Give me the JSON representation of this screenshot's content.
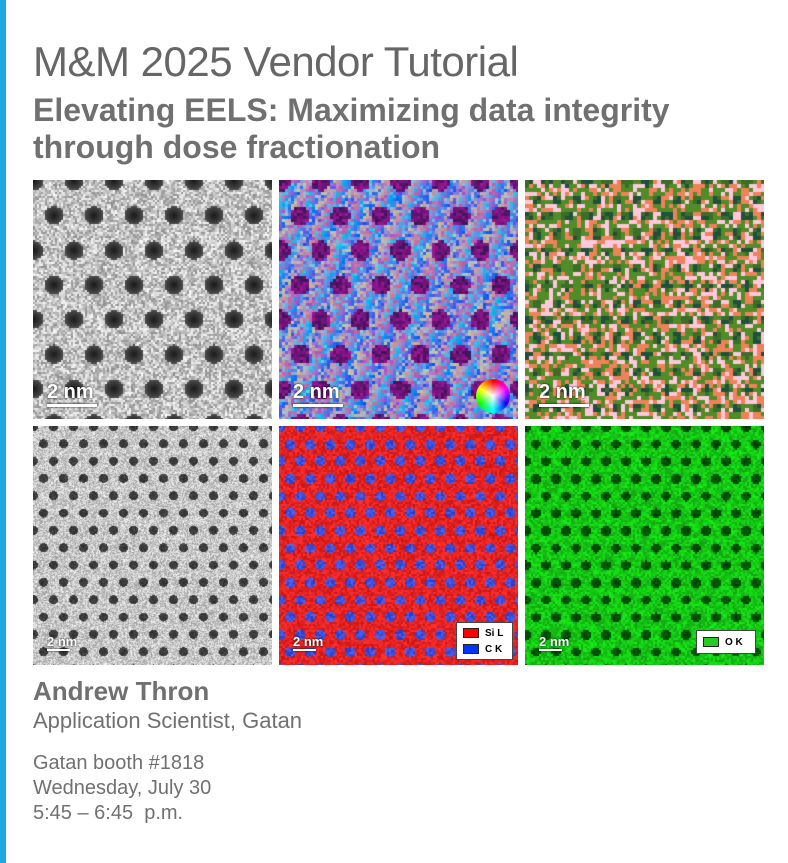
{
  "colors": {
    "accent": "#1ea7e1",
    "text": "#707070"
  },
  "header": {
    "title": "M&M 2025 Vendor Tutorial",
    "subtitle": "Elevating EELS: Maximizing data integrity through dose fractionation"
  },
  "panels": [
    {
      "kind": "gray_large",
      "scalebar": "2 nm"
    },
    {
      "kind": "rgb_phase",
      "scalebar": "2 nm",
      "icon": "color-wheel-icon"
    },
    {
      "kind": "orange_green",
      "scalebar": "2 nm"
    },
    {
      "kind": "gray_small",
      "scalebar": "2 nm"
    },
    {
      "kind": "red_blue",
      "scalebar": "2 nm",
      "legend": [
        {
          "label": "Si L",
          "color": "#ff0000"
        },
        {
          "label": "C K",
          "color": "#0033ff"
        }
      ]
    },
    {
      "kind": "green",
      "scalebar": "2 nm",
      "legend": [
        {
          "label": "O K",
          "color": "#22cc22"
        }
      ]
    }
  ],
  "speaker": {
    "name": "Andrew Thron",
    "role": "Application Scientist, Gatan"
  },
  "event": {
    "booth": "Gatan booth #1818",
    "date": "Wednesday, July 30",
    "time": "5:45 – 6:45  p.m."
  }
}
